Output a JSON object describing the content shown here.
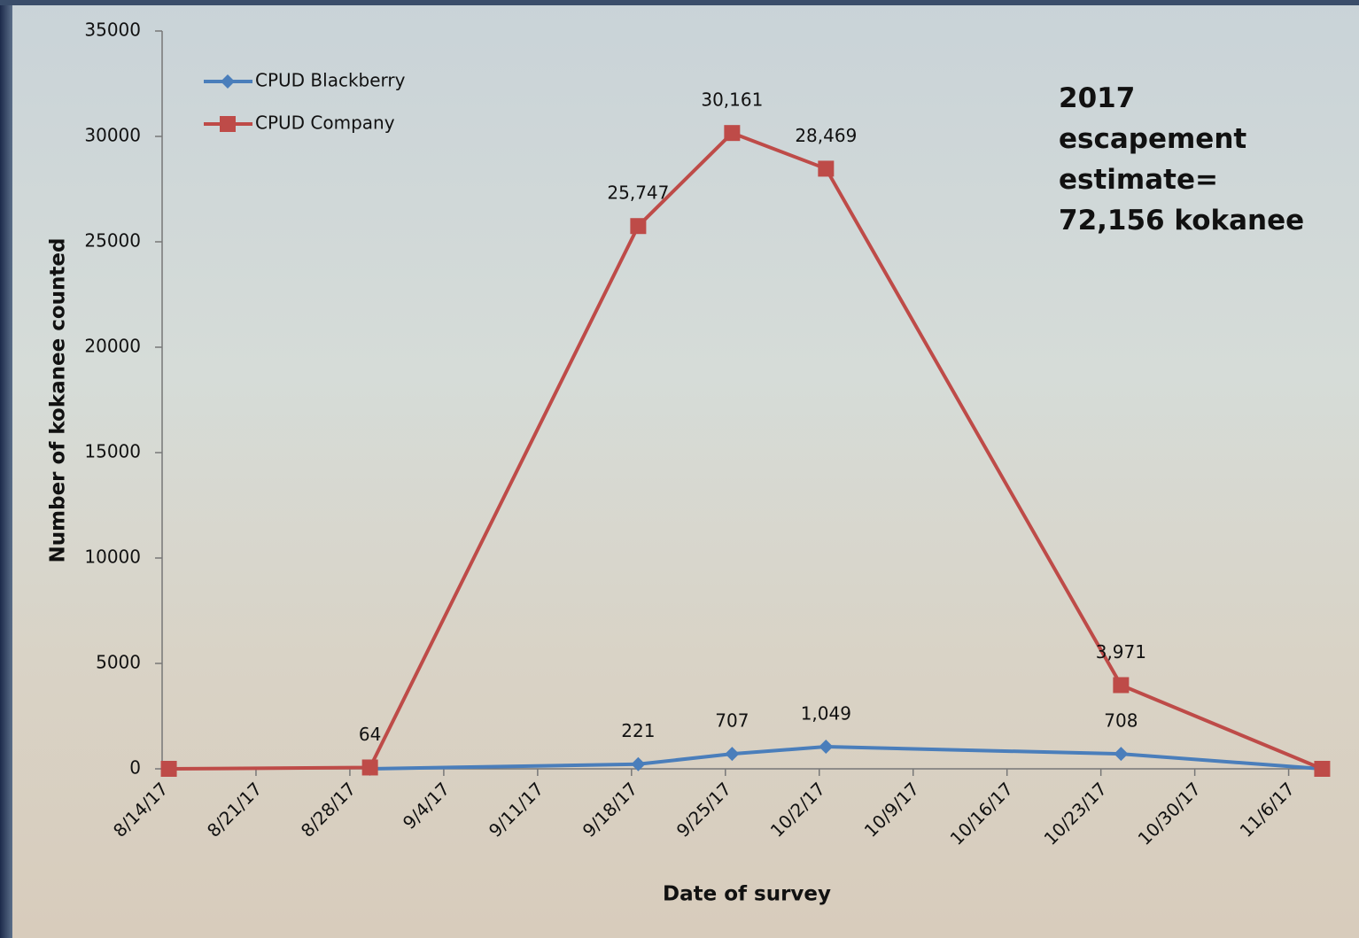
{
  "chart_data": {
    "type": "line",
    "y_label": "Number of kokanee counted",
    "x_label": "Date of survey",
    "annotation": "2017 escapement estimate= 72,156 kokanee",
    "x": [
      "2017-08-14",
      "2017-08-29",
      "2017-09-18",
      "2017-09-25",
      "2017-10-02",
      "2017-10-24",
      "2017-11-08"
    ],
    "series": [
      {
        "name": "CPUD Blackberry",
        "color": "#4a7ebb",
        "marker": "diamond",
        "values": [
          null,
          0,
          221,
          707,
          1049,
          708,
          0
        ],
        "value_labels": [
          null,
          null,
          "221",
          "707",
          "1,049",
          "708",
          null
        ]
      },
      {
        "name": "CPUD Company",
        "color": "#be4b48",
        "marker": "square",
        "values": [
          0,
          64,
          25747,
          30161,
          28469,
          3971,
          0
        ],
        "value_labels": [
          null,
          "64",
          "25,747",
          "30,161",
          "28,469",
          "3,971",
          null
        ]
      }
    ],
    "xlim": [
      "2017-08-14",
      "2017-11-09"
    ],
    "xticks": [
      {
        "value": "2017-08-14",
        "label": "8/14/17"
      },
      {
        "value": "2017-08-21",
        "label": "8/21/17"
      },
      {
        "value": "2017-08-28",
        "label": "8/28/17"
      },
      {
        "value": "2017-09-04",
        "label": "9/4/17"
      },
      {
        "value": "2017-09-11",
        "label": "9/11/17"
      },
      {
        "value": "2017-09-18",
        "label": "9/18/17"
      },
      {
        "value": "2017-09-25",
        "label": "9/25/17"
      },
      {
        "value": "2017-10-02",
        "label": "10/2/17"
      },
      {
        "value": "2017-10-09",
        "label": "10/9/17"
      },
      {
        "value": "2017-10-16",
        "label": "10/16/17"
      },
      {
        "value": "2017-10-23",
        "label": "10/23/17"
      },
      {
        "value": "2017-10-30",
        "label": "10/30/17"
      },
      {
        "value": "2017-11-06",
        "label": "11/6/17"
      }
    ],
    "ylim": [
      0,
      35000
    ],
    "yticks": [
      0,
      5000,
      10000,
      15000,
      20000,
      25000,
      30000,
      35000
    ],
    "grid": false,
    "legend": "top-left"
  }
}
